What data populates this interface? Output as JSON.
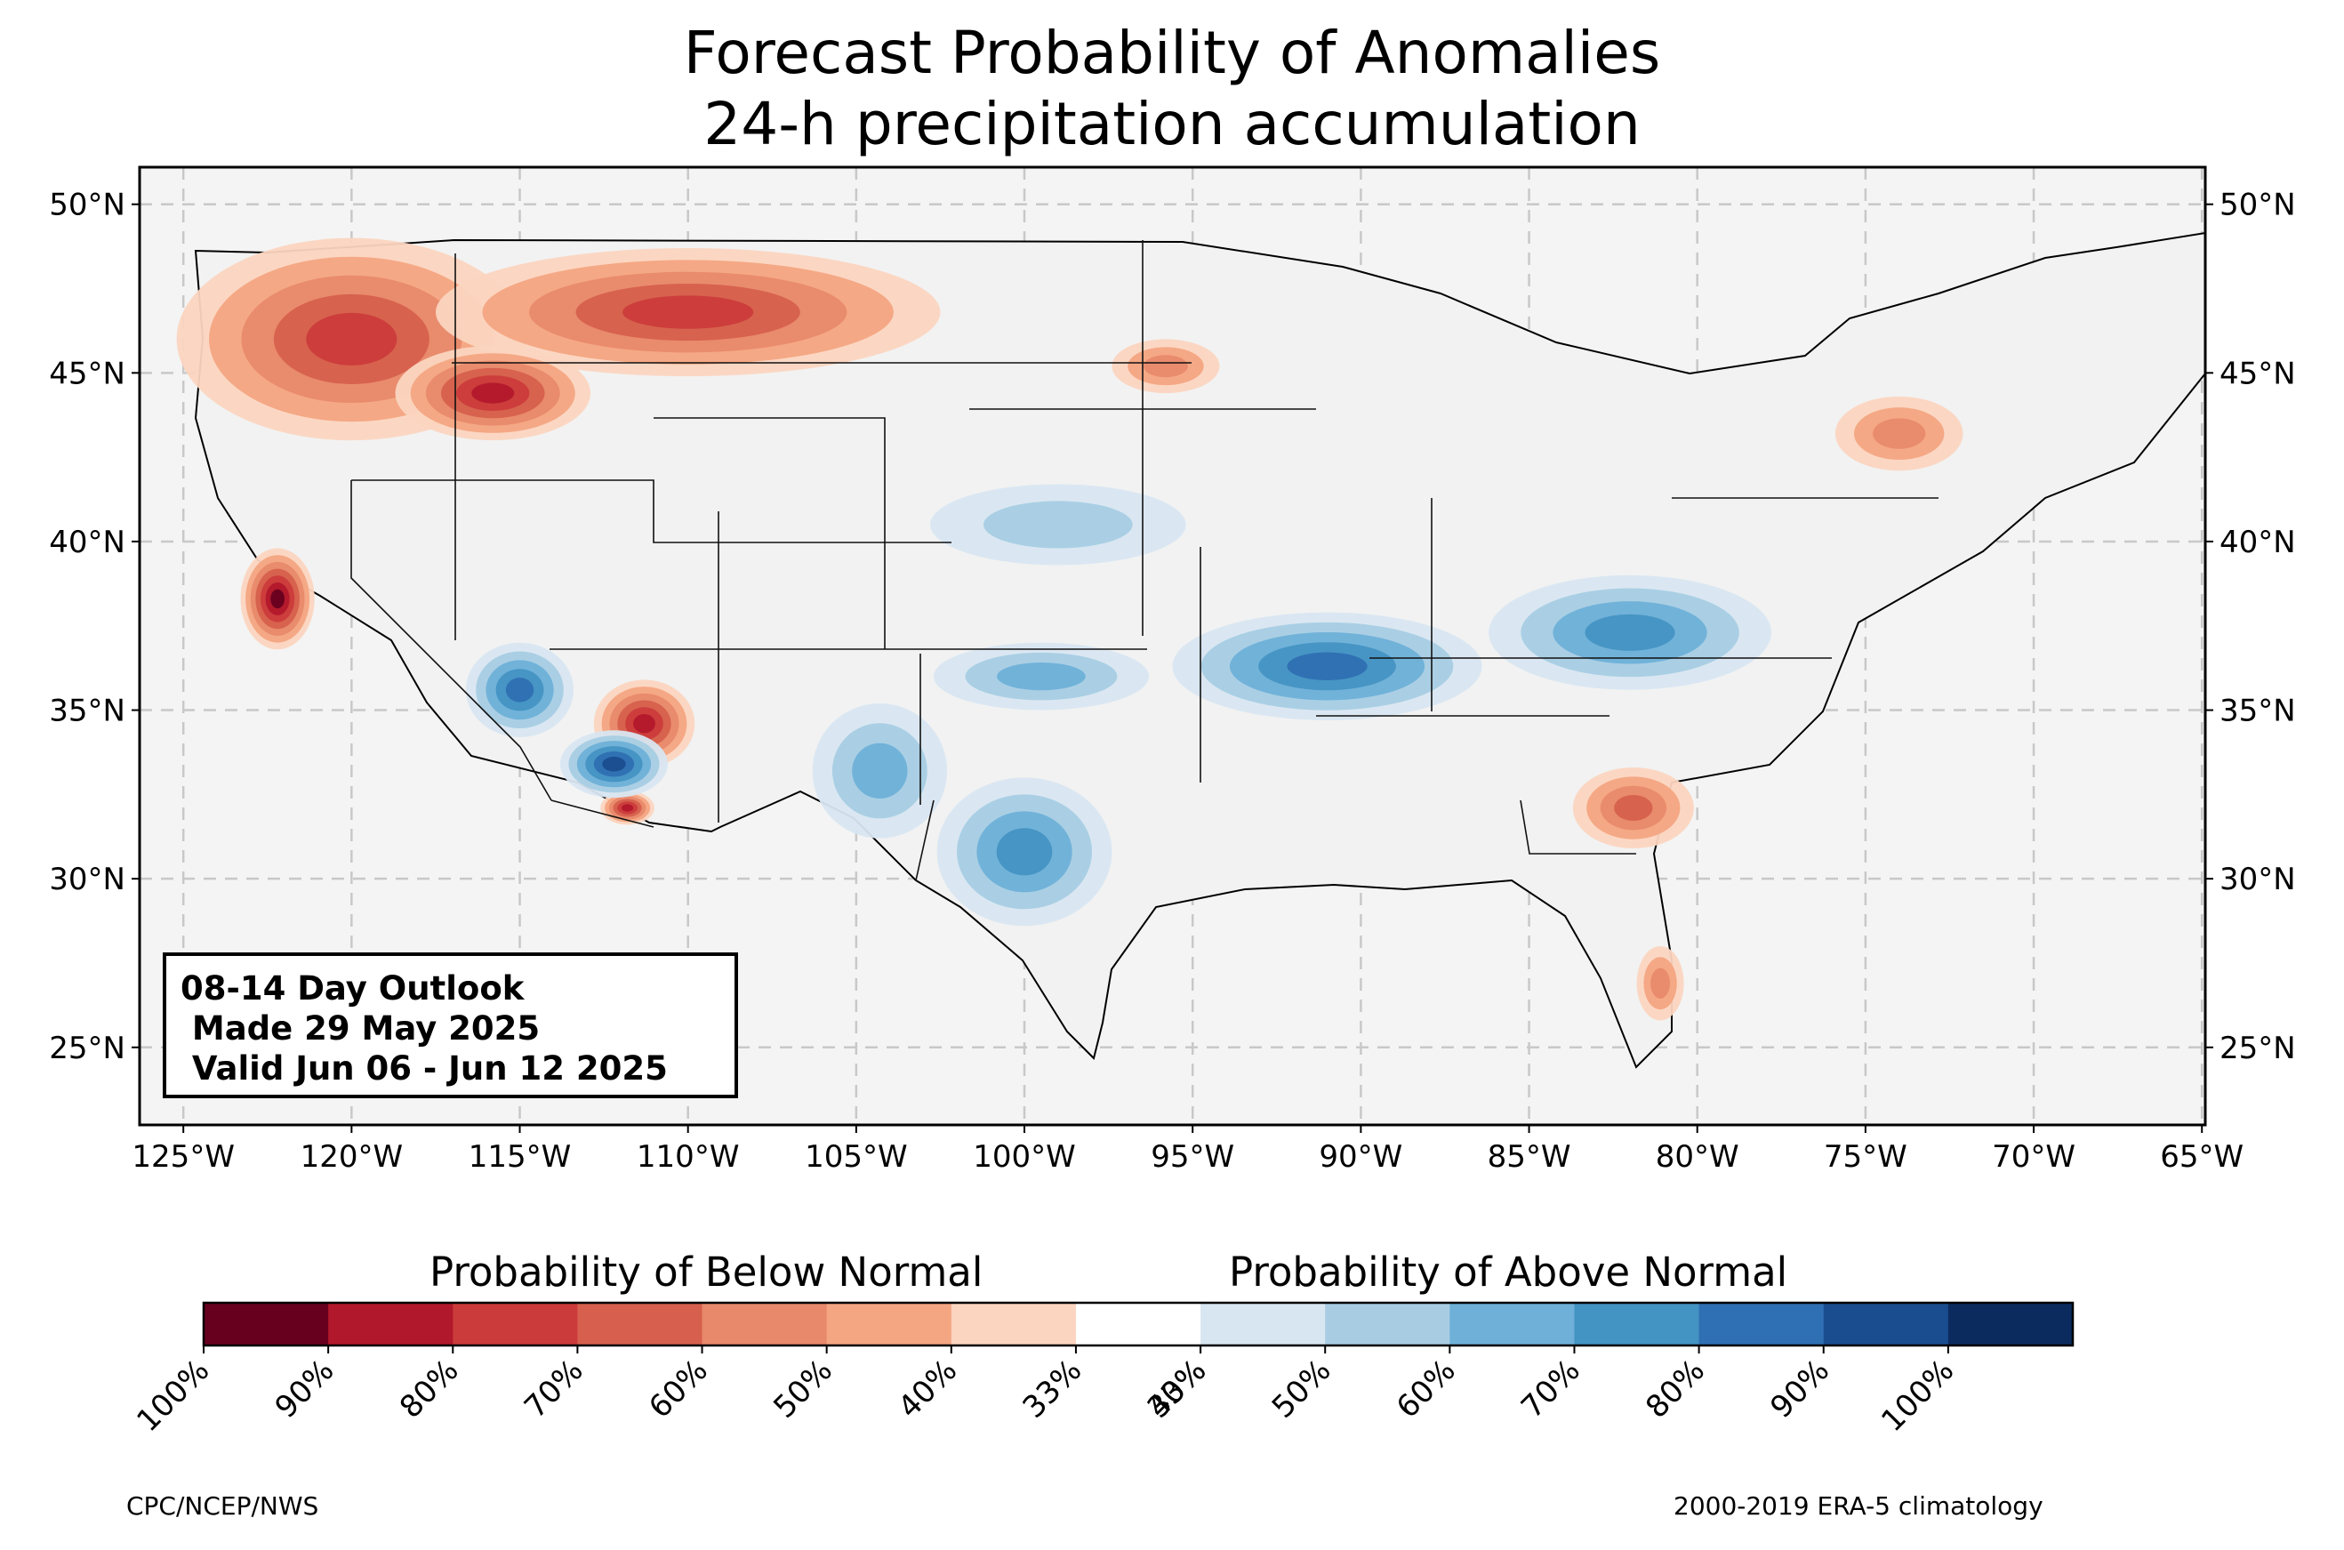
{
  "title": {
    "line1": "Forecast Probability of Anomalies",
    "line2": "24-h precipitation accumulation"
  },
  "map": {
    "projection": "PlateCarree",
    "lon_range": [
      -126.3,
      -64.9
    ],
    "lat_range": [
      22.7,
      51.1
    ],
    "x_ticks": [
      {
        "lon": -125,
        "label": "125°W"
      },
      {
        "lon": -120,
        "label": "120°W"
      },
      {
        "lon": -115,
        "label": "115°W"
      },
      {
        "lon": -110,
        "label": "110°W"
      },
      {
        "lon": -105,
        "label": "105°W"
      },
      {
        "lon": -100,
        "label": "100°W"
      },
      {
        "lon": -95,
        "label": "95°W"
      },
      {
        "lon": -90,
        "label": "90°W"
      },
      {
        "lon": -85,
        "label": "85°W"
      },
      {
        "lon": -80,
        "label": "80°W"
      },
      {
        "lon": -75,
        "label": "75°W"
      },
      {
        "lon": -70,
        "label": "70°W"
      },
      {
        "lon": -65,
        "label": "65°W"
      }
    ],
    "y_ticks": [
      {
        "lat": 50,
        "label": "50°N"
      },
      {
        "lat": 45,
        "label": "45°N"
      },
      {
        "lat": 40,
        "label": "40°N"
      },
      {
        "lat": 35,
        "label": "35°N"
      },
      {
        "lat": 30,
        "label": "30°N"
      },
      {
        "lat": 25,
        "label": "25°N"
      }
    ],
    "gridlines": true,
    "background_color": "#f4f4f4"
  },
  "outlook_box": {
    "line1": "08-14 Day Outlook",
    "line2": "Made 29 May 2025",
    "line3": "Valid Jun 06 - Jun 12 2025"
  },
  "colorbar": {
    "below_label": "Probability of Below Normal",
    "above_label": "Probability of Above Normal",
    "colors": [
      "#67001f",
      "#b2182b",
      "#cb3b3b",
      "#d6604d",
      "#e8896b",
      "#f4a582",
      "#fbd5c0",
      "#ffffff",
      "#d8e6f1",
      "#a8cde3",
      "#6eb0d8",
      "#4393c3",
      "#2f6fb3",
      "#1a4d8f",
      "#0b2b5e"
    ],
    "tick_labels": [
      "100%",
      "90%",
      "80%",
      "70%",
      "60%",
      "50%",
      "40%",
      "33%",
      "33%",
      "40%",
      "50%",
      "60%",
      "70%",
      "80%",
      "90%",
      "100%"
    ]
  },
  "anomalies": [
    {
      "lon": -120.0,
      "lat": 46.0,
      "rx": 5.2,
      "ry": 3.0,
      "level": 4,
      "cat": "below"
    },
    {
      "lon": -110.0,
      "lat": 46.8,
      "rx": 7.5,
      "ry": 1.9,
      "level": 4,
      "cat": "below"
    },
    {
      "lon": -115.8,
      "lat": 44.4,
      "rx": 2.9,
      "ry": 1.4,
      "level": 5,
      "cat": "below"
    },
    {
      "lon": -122.2,
      "lat": 38.3,
      "rx": 1.1,
      "ry": 1.5,
      "level": 6,
      "cat": "below"
    },
    {
      "lon": -111.3,
      "lat": 34.6,
      "rx": 1.5,
      "ry": 1.3,
      "level": 5,
      "cat": "below"
    },
    {
      "lon": -111.8,
      "lat": 32.1,
      "rx": 0.8,
      "ry": 0.5,
      "level": 5,
      "cat": "below"
    },
    {
      "lon": -81.9,
      "lat": 32.1,
      "rx": 1.8,
      "ry": 1.2,
      "level": 3,
      "cat": "below"
    },
    {
      "lon": -74.0,
      "lat": 43.2,
      "rx": 1.9,
      "ry": 1.1,
      "level": 2,
      "cat": "below"
    },
    {
      "lon": -81.1,
      "lat": 26.9,
      "rx": 0.7,
      "ry": 1.1,
      "level": 2,
      "cat": "below"
    },
    {
      "lon": -95.8,
      "lat": 45.2,
      "rx": 1.6,
      "ry": 0.8,
      "level": 2,
      "cat": "below"
    },
    {
      "lon": -115.0,
      "lat": 35.6,
      "rx": 1.6,
      "ry": 1.4,
      "level": 4,
      "cat": "above"
    },
    {
      "lon": -112.2,
      "lat": 33.4,
      "rx": 1.6,
      "ry": 1.0,
      "level": 5,
      "cat": "above"
    },
    {
      "lon": -91.0,
      "lat": 36.3,
      "rx": 4.6,
      "ry": 1.6,
      "level": 4,
      "cat": "above"
    },
    {
      "lon": -100.0,
      "lat": 30.8,
      "rx": 2.6,
      "ry": 2.2,
      "level": 3,
      "cat": "above"
    },
    {
      "lon": -99.5,
      "lat": 36.0,
      "rx": 3.2,
      "ry": 1.0,
      "level": 2,
      "cat": "above"
    },
    {
      "lon": -82.0,
      "lat": 37.3,
      "rx": 4.2,
      "ry": 1.7,
      "level": 3,
      "cat": "above"
    },
    {
      "lon": -104.3,
      "lat": 33.2,
      "rx": 2.0,
      "ry": 2.0,
      "level": 2,
      "cat": "above"
    },
    {
      "lon": -99.0,
      "lat": 40.5,
      "rx": 3.8,
      "ry": 1.2,
      "level": 1,
      "cat": "above"
    }
  ],
  "credits": {
    "left": "CPC/NCEP/NWS",
    "right": "2000-2019 ERA-5 climatology"
  }
}
